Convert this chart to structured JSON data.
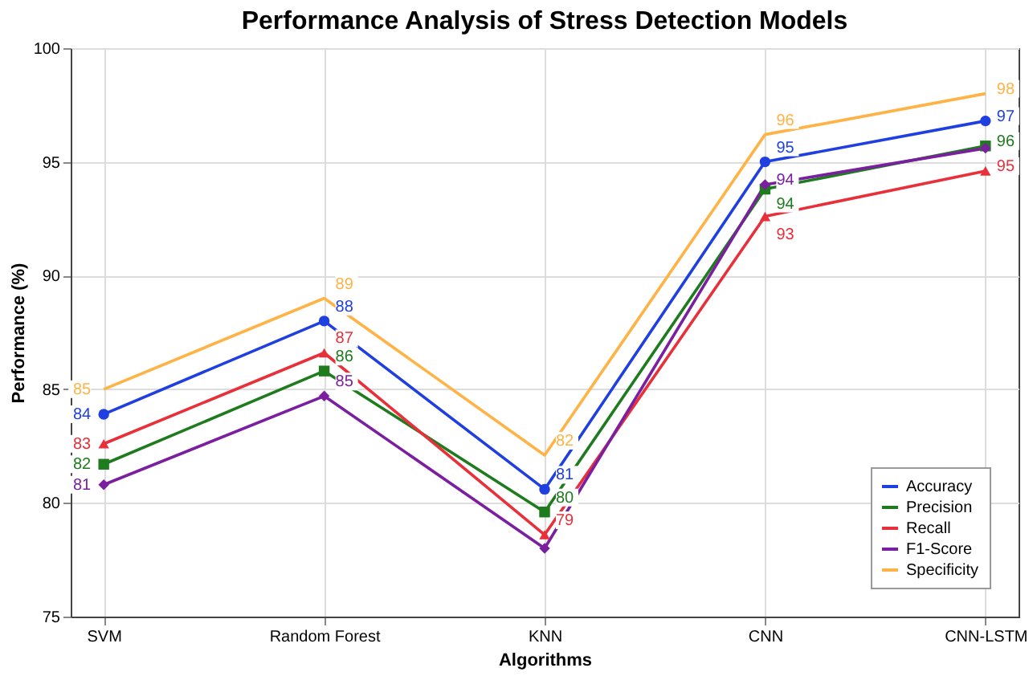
{
  "chart_data": {
    "type": "line",
    "title": "Performance Analysis of Stress Detection Models",
    "xlabel": "Algorithms",
    "ylabel": "Performance (%)",
    "categories": [
      "SVM",
      "Random Forest",
      "KNN",
      "CNN",
      "CNN-LSTM"
    ],
    "series": [
      {
        "name": "Accuracy",
        "color": "#1f3fe0",
        "marker": "circle",
        "values": [
          83.9,
          88.0,
          80.6,
          95.0,
          96.8
        ],
        "value_labels": [
          "84",
          "88",
          "81",
          "95",
          "97"
        ]
      },
      {
        "name": "Precision",
        "color": "#1e7b1e",
        "marker": "square",
        "values": [
          81.7,
          85.8,
          79.6,
          93.8,
          95.7
        ],
        "value_labels": [
          "82",
          "86",
          "80",
          "94",
          "96"
        ]
      },
      {
        "name": "Recall",
        "color": "#e8303a",
        "marker": "triangle",
        "values": [
          82.6,
          86.6,
          78.6,
          92.6,
          94.6
        ],
        "value_labels": [
          "83",
          "87",
          "79",
          "93",
          "95"
        ]
      },
      {
        "name": "F1-Score",
        "color": "#7a1fa0",
        "marker": "diamond",
        "values": [
          80.8,
          84.7,
          78.0,
          94.0,
          95.6
        ],
        "value_labels": [
          "81",
          "85",
          null,
          "94",
          null
        ]
      },
      {
        "name": "Specificity",
        "color": "#ffb347",
        "marker": "none",
        "values": [
          85.0,
          89.0,
          82.1,
          96.2,
          98.0
        ],
        "value_labels": [
          "85",
          "89",
          "82",
          "96",
          "98"
        ]
      }
    ],
    "ylim": [
      75,
      100
    ],
    "yticks": [
      75,
      80,
      85,
      90,
      95,
      100
    ],
    "grid": true,
    "legend": "bottom right"
  }
}
